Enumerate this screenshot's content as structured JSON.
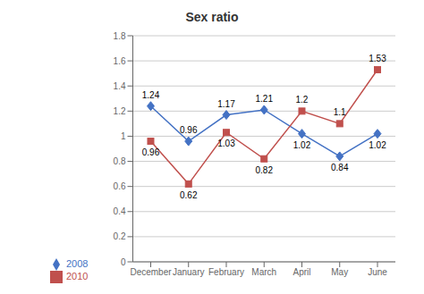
{
  "chart_data": {
    "type": "line",
    "title": "Sex ratio",
    "categories": [
      "December",
      "January",
      "February",
      "March",
      "April",
      "May",
      "June"
    ],
    "series": [
      {
        "name": "2008",
        "color": "#4472c4",
        "marker": "diamond",
        "values": [
          1.24,
          0.96,
          1.17,
          1.21,
          1.02,
          0.84,
          1.02
        ]
      },
      {
        "name": "2010",
        "color": "#c0504d",
        "marker": "square",
        "values": [
          0.96,
          0.62,
          1.03,
          0.82,
          1.2,
          1.1,
          1.53
        ]
      }
    ],
    "ylim": [
      0,
      1.8
    ],
    "yticks": [
      0,
      0.2,
      0.4,
      0.6,
      0.8,
      1,
      1.2,
      1.4,
      1.6,
      1.8
    ],
    "grid": true,
    "legend": "bottom",
    "data_labels": true
  }
}
